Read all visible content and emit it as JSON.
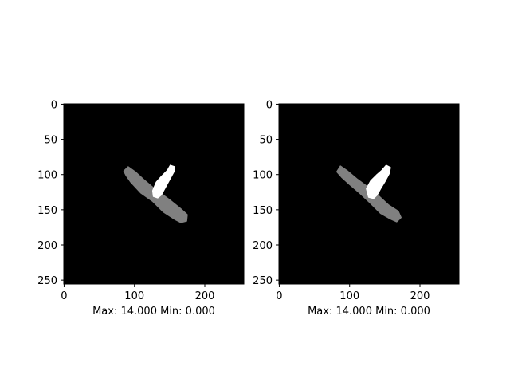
{
  "chart_data": [
    {
      "type": "heatmap",
      "title": "",
      "xlabel": "Max: 14.000 Min: 0.000",
      "ylabel": "",
      "xlim": [
        0,
        255
      ],
      "ylim": [
        255,
        0
      ],
      "xticks": [
        0,
        100,
        200
      ],
      "yticks": [
        0,
        50,
        100,
        150,
        200,
        250
      ],
      "value_range": [
        0,
        14
      ],
      "colormap": "gray",
      "grid": false,
      "legend": "none",
      "regions": [
        {
          "name": "",
          "label_value": 7,
          "color": "#808080",
          "polygon": [
            [
              85,
              95
            ],
            [
              91,
              89
            ],
            [
              101,
              96
            ],
            [
              113,
              107
            ],
            [
              127,
              119
            ],
            [
              150,
              136
            ],
            [
              165,
              148
            ],
            [
              175,
              157
            ],
            [
              174,
              166
            ],
            [
              166,
              168
            ],
            [
              158,
              164
            ],
            [
              141,
              153
            ],
            [
              126,
              138
            ],
            [
              109,
              126
            ],
            [
              95,
              111
            ],
            [
              88,
              101
            ]
          ]
        },
        {
          "name": "",
          "label_value": 14,
          "color": "#ffffff",
          "polygon": [
            [
              126,
              123
            ],
            [
              131,
              111
            ],
            [
              138,
              103
            ],
            [
              147,
              94
            ],
            [
              151,
              87
            ],
            [
              157,
              89
            ],
            [
              156,
              96
            ],
            [
              150,
              107
            ],
            [
              144,
              118
            ],
            [
              138,
              129
            ],
            [
              133,
              133
            ],
            [
              127,
              131
            ]
          ]
        }
      ]
    },
    {
      "type": "heatmap",
      "title": "",
      "xlabel": "Max: 14.000 Min: 0.000",
      "ylabel": "",
      "xlim": [
        0,
        255
      ],
      "ylim": [
        255,
        0
      ],
      "xticks": [
        0,
        100,
        200
      ],
      "yticks": [
        0,
        50,
        100,
        150,
        200,
        250
      ],
      "value_range": [
        0,
        14
      ],
      "colormap": "gray",
      "grid": false,
      "legend": "none",
      "regions": [
        {
          "name": "",
          "label_value": 7,
          "color": "#808080",
          "polygon": [
            [
              82,
              96
            ],
            [
              87,
              88
            ],
            [
              97,
              95
            ],
            [
              110,
              106
            ],
            [
              125,
              117
            ],
            [
              141,
              130
            ],
            [
              155,
              143
            ],
            [
              169,
              152
            ],
            [
              173,
              161
            ],
            [
              167,
              167
            ],
            [
              158,
              163
            ],
            [
              144,
              155
            ],
            [
              128,
              139
            ],
            [
              114,
              126
            ],
            [
              100,
              114
            ],
            [
              89,
              104
            ]
          ]
        },
        {
          "name": "",
          "label_value": 14,
          "color": "#ffffff",
          "polygon": [
            [
              124,
              120
            ],
            [
              130,
              109
            ],
            [
              138,
              101
            ],
            [
              146,
              94
            ],
            [
              152,
              87
            ],
            [
              158,
              90
            ],
            [
              156,
              99
            ],
            [
              150,
              110
            ],
            [
              144,
              120
            ],
            [
              139,
              129
            ],
            [
              134,
              134
            ],
            [
              127,
              132
            ]
          ]
        }
      ]
    }
  ]
}
